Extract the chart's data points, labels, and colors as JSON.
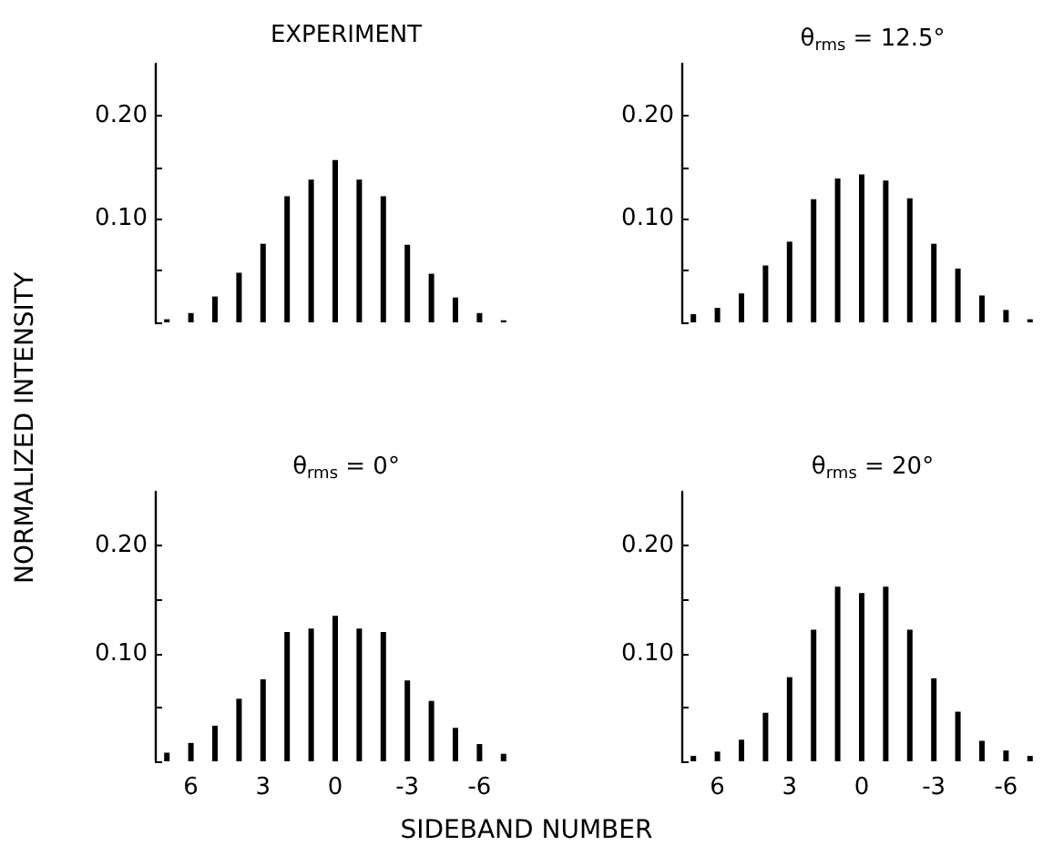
{
  "chart_data": [
    {
      "type": "bar",
      "title": "EXPERIMENT",
      "ylabel": "NORMALIZED INTENSITY",
      "categories": [
        null,
        "6",
        null,
        null,
        "3",
        null,
        null,
        "0",
        null,
        null,
        "-3",
        null,
        null,
        "-6",
        null
      ],
      "tick_labels": "y",
      "series": [
        {
          "color": "#000000",
          "values": [
            0.003,
            0.009,
            0.025,
            0.048,
            0.076,
            0.122,
            0.138,
            0.157,
            0.138,
            0.122,
            0.075,
            0.047,
            0.024,
            0.009,
            0.002
          ]
        }
      ],
      "ylim": [
        0,
        0.25
      ],
      "yticks": [
        {
          "value": 0,
          "label": null
        },
        {
          "value": 0.05,
          "label": null
        },
        {
          "value": 0.1,
          "label": "0.10"
        },
        {
          "value": 0.15,
          "label": null
        },
        {
          "value": 0.2,
          "label": "0.20"
        }
      ],
      "grid": false
    },
    {
      "type": "bar",
      "title": "θ$_{rms}$ = 12.5°",
      "categories": [
        null,
        "6",
        null,
        null,
        "3",
        null,
        null,
        "0",
        null,
        null,
        "-3",
        null,
        null,
        "-6",
        null
      ],
      "tick_labels": "y",
      "series": [
        {
          "color": "#000000",
          "values": [
            0.008,
            0.014,
            0.028,
            0.055,
            0.078,
            0.119,
            0.139,
            0.143,
            0.137,
            0.12,
            0.076,
            0.052,
            0.026,
            0.012,
            0.003
          ]
        }
      ],
      "ylim": [
        0,
        0.25
      ],
      "yticks": [
        {
          "value": 0,
          "label": null
        },
        {
          "value": 0.05,
          "label": null
        },
        {
          "value": 0.1,
          "label": "0.10"
        },
        {
          "value": 0.15,
          "label": null
        },
        {
          "value": 0.2,
          "label": "0.20"
        }
      ],
      "grid": false
    },
    {
      "type": "bar",
      "title": "θ$_{rms}$ = 0°",
      "xlabel": "SIDEBAND NUMBER",
      "categories": [
        null,
        "6",
        null,
        null,
        "3",
        null,
        null,
        "0",
        null,
        null,
        "-3",
        null,
        null,
        "-6",
        null
      ],
      "series": [
        {
          "color": "#000000",
          "values": [
            0.008,
            0.017,
            0.033,
            0.058,
            0.076,
            0.12,
            0.123,
            0.135,
            0.123,
            0.12,
            0.075,
            0.056,
            0.031,
            0.016,
            0.007
          ]
        }
      ],
      "ylim": [
        0,
        0.25
      ],
      "yticks": [
        {
          "value": 0,
          "label": null
        },
        {
          "value": 0.05,
          "label": null
        },
        {
          "value": 0.1,
          "label": "0.10"
        },
        {
          "value": 0.15,
          "label": null
        },
        {
          "value": 0.2,
          "label": "0.20"
        }
      ],
      "grid": false
    },
    {
      "type": "bar",
      "title": "θ$_{rms}$ = 20°",
      "categories": [
        null,
        "6",
        null,
        null,
        "3",
        null,
        null,
        "0",
        null,
        null,
        "-3",
        null,
        null,
        "-6",
        null
      ],
      "series": [
        {
          "color": "#000000",
          "values": [
            0.005,
            0.009,
            0.02,
            0.045,
            0.078,
            0.122,
            0.162,
            0.156,
            0.162,
            0.122,
            0.077,
            0.046,
            0.019,
            0.01,
            0.005
          ]
        }
      ],
      "ylim": [
        0,
        0.25
      ],
      "yticks": [
        {
          "value": 0,
          "label": null
        },
        {
          "value": 0.05,
          "label": null
        },
        {
          "value": 0.1,
          "label": "0.10"
        },
        {
          "value": 0.15,
          "label": null
        },
        {
          "value": 0.2,
          "label": "0.20"
        }
      ],
      "grid": false
    }
  ]
}
